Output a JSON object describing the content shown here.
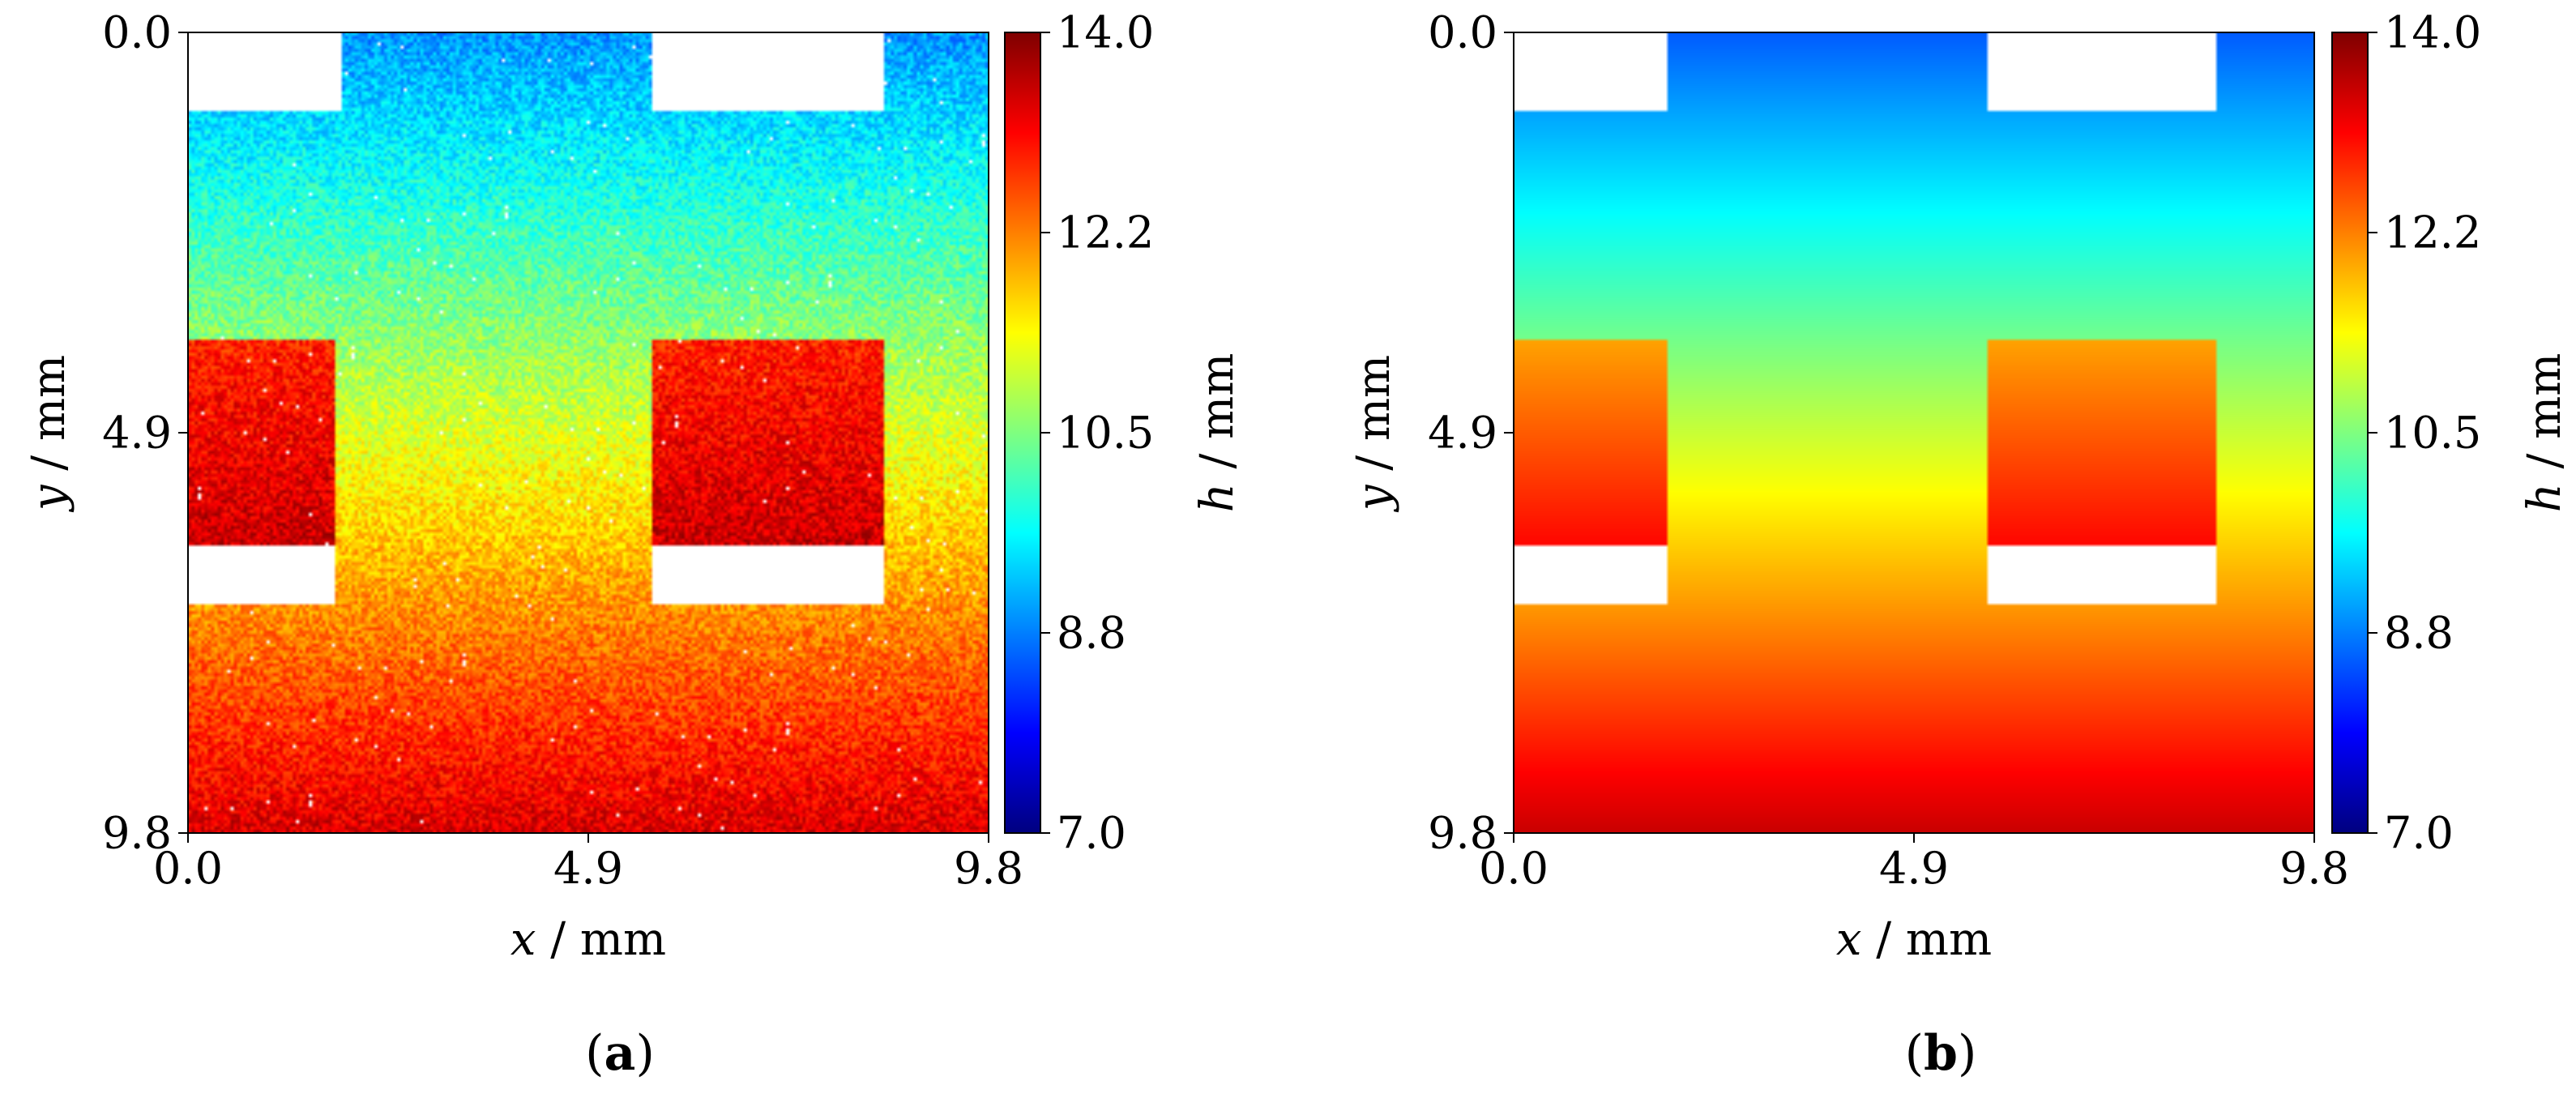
{
  "colorscale_stops": [
    "#00007f",
    "#0000ff",
    "#007fff",
    "#00ffff",
    "#7fff7f",
    "#ffff00",
    "#ff7f00",
    "#ff0000",
    "#7f0000"
  ],
  "chart_data": [
    {
      "type": "heatmap",
      "panel": "(a)",
      "panel_letter": "a",
      "variant": "noisy",
      "xlabel_var": "x",
      "xlabel_unit": " / mm",
      "ylabel_var": "y",
      "ylabel_unit": " / mm",
      "colorbar_var": "h",
      "colorbar_unit": " / mm",
      "x_ticks": [
        "0.0",
        "4.9",
        "9.8"
      ],
      "y_ticks": [
        "0.0",
        "4.9",
        "9.8"
      ],
      "colorbar_ticks": [
        "14.0",
        "12.2",
        "10.5",
        "8.8",
        "7.0"
      ],
      "xlim": [
        0.0,
        9.8
      ],
      "ylim": [
        0.0,
        9.8
      ],
      "clim": [
        7.0,
        14.0
      ],
      "y_axis_inverted": true,
      "h_top": 8.9,
      "h_bottom": 13.4,
      "h_block_top": 12.9,
      "h_block_bottom": 13.5,
      "noise_mm": 0.45,
      "masked_regions": [
        {
          "x0": 0.0,
          "x1": 1.9,
          "y0": 0.0,
          "y1": 0.95
        },
        {
          "x0": 5.7,
          "x1": 8.5,
          "y0": 0.0,
          "y1": 0.95
        },
        {
          "x0": 0.0,
          "x1": 1.8,
          "y0": 6.3,
          "y1": 7.0
        },
        {
          "x0": 5.7,
          "x1": 8.5,
          "y0": 6.3,
          "y1": 7.0
        }
      ],
      "blocks": [
        {
          "x0": 0.0,
          "x1": 1.8,
          "y0": 3.75,
          "y1": 6.3
        },
        {
          "x0": 5.7,
          "x1": 8.5,
          "y0": 3.75,
          "y1": 6.3
        }
      ]
    },
    {
      "type": "heatmap",
      "panel": "(b)",
      "panel_letter": "b",
      "variant": "smooth",
      "xlabel_var": "x",
      "xlabel_unit": " / mm",
      "ylabel_var": "y",
      "ylabel_unit": " / mm",
      "colorbar_var": "h",
      "colorbar_unit": " / mm",
      "x_ticks": [
        "0.0",
        "4.9",
        "9.8"
      ],
      "y_ticks": [
        "0.0",
        "4.9",
        "9.8"
      ],
      "colorbar_ticks": [
        "14.0",
        "12.2",
        "10.5",
        "8.8",
        "7.0"
      ],
      "xlim": [
        0.0,
        9.8
      ],
      "ylim": [
        0.0,
        9.8
      ],
      "clim": [
        7.0,
        14.0
      ],
      "y_axis_inverted": true,
      "h_top": 8.5,
      "h_bottom": 13.5,
      "h_block_top": 12.0,
      "h_block_bottom": 13.1,
      "noise_mm": 0.0,
      "masked_regions": [
        {
          "x0": 0.0,
          "x1": 1.9,
          "y0": 0.0,
          "y1": 0.95
        },
        {
          "x0": 5.8,
          "x1": 8.6,
          "y0": 0.0,
          "y1": 0.95
        },
        {
          "x0": 0.0,
          "x1": 1.9,
          "y0": 6.3,
          "y1": 7.0
        },
        {
          "x0": 5.8,
          "x1": 8.6,
          "y0": 6.3,
          "y1": 7.0
        }
      ],
      "blocks": [
        {
          "x0": 0.0,
          "x1": 1.9,
          "y0": 3.75,
          "y1": 6.3
        },
        {
          "x0": 5.8,
          "x1": 8.6,
          "y0": 3.75,
          "y1": 6.3
        }
      ]
    }
  ]
}
